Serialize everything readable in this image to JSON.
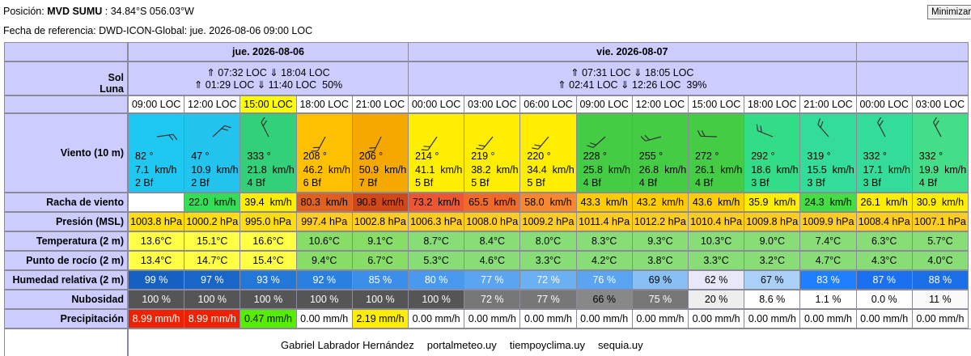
{
  "header": {
    "position_label": "Posición:",
    "station": "MVD SUMU",
    "coords": ": 34.84°S 056.03°W",
    "reference": "Fecha de referencia: DWD-ICON-Global: jue. 2026-08-06 09:00 LOC",
    "button": "Minimizar"
  },
  "row_labels": {
    "sun": "Sol",
    "moon": "Luna",
    "wind": "Viento (10 m)",
    "gust": "Racha de viento",
    "pressure": "Presión (MSL)",
    "temp": "Temperatura (2 m)",
    "dew": "Punto de rocío (2 m)",
    "humidity": "Humedad relativa (2 m)",
    "clouds": "Nubosidad",
    "precip": "Precipitación"
  },
  "days": [
    {
      "label": "jue. 2026-08-06",
      "sun": "⇑ 07:32 LOC ⇓ 18:04 LOC",
      "moon": "⇑ 01:29 LOC ⇓ 11:40 LOC  50%",
      "columns": [
        {
          "time": "09:00 LOC",
          "dir": "82 °",
          "speed": "7.1  km/h",
          "bf": "2 Bf",
          "pressure": "1003.8 hPa",
          "temp": "13.6°C",
          "dew": "13.4°C",
          "humidity": "99 %",
          "clouds": "100 %",
          "precip": "8.99 mm/h",
          "colors": {
            "time": "#ffffff",
            "wind": "#1ec8f0",
            "gust": "#ffffff",
            "pressure": "#ffdd11",
            "temp": "#ffff44",
            "dew": "#ffff44",
            "humidity": "#1560c0",
            "clouds": "#555555",
            "precip": "#ee2200"
          },
          "text_colors": {
            "humidity": "#ffffff",
            "clouds": "#ffffff",
            "precip": "#ffffff"
          }
        },
        {
          "time": "12:00 LOC",
          "dir": "47 °",
          "speed": "10.9  km/h",
          "bf": "2 Bf",
          "gust": "22.0  km/h",
          "pressure": "1000.2 hPa",
          "temp": "15.1°C",
          "dew": "14.7°C",
          "humidity": "97 %",
          "clouds": "100 %",
          "precip": "8.99 mm/h",
          "colors": {
            "time": "#ffffff",
            "wind": "#22c4ee",
            "gust": "#33dd55",
            "pressure": "#ffdd11",
            "temp": "#ffff44",
            "dew": "#ffff44",
            "humidity": "#1a66c8",
            "clouds": "#555555",
            "precip": "#ee2200"
          },
          "text_colors": {
            "humidity": "#ffffff",
            "clouds": "#ffffff",
            "precip": "#ffffff"
          }
        },
        {
          "time": "15:00 LOC",
          "dir": "333 °",
          "speed": "21.8  km/h",
          "bf": "4 Bf",
          "gust": "39.4  km/h",
          "pressure": "995.0 hPa",
          "temp": "16.6°C",
          "dew": "15.4°C",
          "humidity": "93 %",
          "clouds": "100 %",
          "precip": "0.47 mm/h",
          "colors": {
            "time": "#ffff00",
            "wind": "#33d07a",
            "gust": "#ffee00",
            "pressure": "#ffdd11",
            "temp": "#ffff44",
            "dew": "#ffff44",
            "humidity": "#2277d8",
            "clouds": "#555555",
            "precip": "#55ee00"
          },
          "text_colors": {
            "humidity": "#ffffff",
            "clouds": "#ffffff"
          }
        },
        {
          "time": "18:00 LOC",
          "dir": "208 °",
          "speed": "46.2  km/h",
          "bf": "6 Bf",
          "gust": "80.3  km/h",
          "pressure": "997.4 hPa",
          "temp": "10.6°C",
          "dew": "9.4°C",
          "humidity": "92 %",
          "clouds": "100 %",
          "precip": "0.00 mm/h",
          "colors": {
            "time": "#ffffff",
            "wind": "#ffc000",
            "gust": "#e06020",
            "pressure": "#ffcc22",
            "temp": "#88dd66",
            "dew": "#88dd66",
            "humidity": "#2a80e0",
            "clouds": "#555555",
            "precip": "#ffffff"
          },
          "text_colors": {
            "humidity": "#ffffff",
            "clouds": "#ffffff"
          }
        },
        {
          "time": "21:00 LOC",
          "dir": "206 °",
          "speed": "50.9  km/h",
          "bf": "7 Bf",
          "gust": "90.8  km/h",
          "pressure": "1002.8 hPa",
          "temp": "9.1°C",
          "dew": "6.7°C",
          "humidity": "85 %",
          "clouds": "100 %",
          "precip": "2.19 mm/h",
          "colors": {
            "time": "#ffffff",
            "wind": "#f5a800",
            "gust": "#d04818",
            "pressure": "#ffcc22",
            "temp": "#88dd66",
            "dew": "#88dd66",
            "humidity": "#3b8eea",
            "clouds": "#555555",
            "precip": "#ffee00"
          },
          "text_colors": {
            "humidity": "#ffffff",
            "clouds": "#ffffff"
          }
        }
      ]
    },
    {
      "label": "vie. 2026-08-07",
      "sun": "⇑ 07:31 LOC ⇓ 18:05 LOC",
      "moon": "⇑ 02:41 LOC ⇓ 12:26 LOC  39%",
      "columns": [
        {
          "time": "00:00 LOC",
          "dir": "214 °",
          "speed": "41.1  km/h",
          "bf": "5 Bf",
          "gust": "73.2  km/h",
          "pressure": "1006.3 hPa",
          "temp": "8.7°C",
          "dew": "5.3°C",
          "humidity": "80 %",
          "clouds": "100 %",
          "precip": "0.00 mm/h",
          "colors": {
            "time": "#ffffff",
            "wind": "#ffee00",
            "gust": "#ee5533",
            "pressure": "#ffcc22",
            "temp": "#88dd77",
            "dew": "#88dd77",
            "humidity": "#4a99f0",
            "clouds": "#555555",
            "precip": "#ffffff"
          },
          "text_colors": {
            "humidity": "#ffffff",
            "clouds": "#ffffff"
          }
        },
        {
          "time": "03:00 LOC",
          "dir": "219 °",
          "speed": "38.2  km/h",
          "bf": "5 Bf",
          "gust": "65.5  km/h",
          "pressure": "1008.0 hPa",
          "temp": "8.4°C",
          "dew": "4.6°C",
          "humidity": "77 %",
          "clouds": "72 %",
          "precip": "0.00 mm/h",
          "colors": {
            "time": "#ffffff",
            "wind": "#ffee00",
            "gust": "#f06a2a",
            "pressure": "#ffcc22",
            "temp": "#88dd77",
            "dew": "#88dd77",
            "humidity": "#5aa4f2",
            "clouds": "#777777",
            "precip": "#ffffff"
          },
          "text_colors": {
            "humidity": "#ffffff",
            "clouds": "#ffffff"
          }
        },
        {
          "time": "06:00 LOC",
          "dir": "220 °",
          "speed": "34.4  km/h",
          "bf": "5 Bf",
          "gust": "58.0  km/h",
          "pressure": "1009.2 hPa",
          "temp": "8.0°C",
          "dew": "3.3°C",
          "humidity": "72 %",
          "clouds": "77 %",
          "precip": "0.00 mm/h",
          "colors": {
            "time": "#ffffff",
            "wind": "#ffee00",
            "gust": "#f88830",
            "pressure": "#ffcc22",
            "temp": "#88dd77",
            "dew": "#88dd77",
            "humidity": "#6cb0f4",
            "clouds": "#777777",
            "precip": "#ffffff"
          },
          "text_colors": {
            "humidity": "#ffffff",
            "clouds": "#ffffff"
          }
        },
        {
          "time": "09:00 LOC",
          "dir": "228 °",
          "speed": "25.8  km/h",
          "bf": "4 Bf",
          "gust": "43.3  km/h",
          "pressure": "1011.4 hPa",
          "temp": "8.3°C",
          "dew": "4.2°C",
          "humidity": "76 %",
          "clouds": "66 %",
          "precip": "0.00 mm/h",
          "colors": {
            "time": "#ffffff",
            "wind": "#44cc44",
            "gust": "#ffcc00",
            "pressure": "#ffcc22",
            "temp": "#88dd77",
            "dew": "#88dd77",
            "humidity": "#5aa4f2",
            "clouds": "#888888",
            "precip": "#ffffff"
          },
          "text_colors": {
            "humidity": "#ffffff"
          }
        },
        {
          "time": "12:00 LOC",
          "dir": "255 °",
          "speed": "26.8  km/h",
          "bf": "4 Bf",
          "gust": "43.2  km/h",
          "pressure": "1012.2 hPa",
          "temp": "9.3°C",
          "dew": "3.8°C",
          "humidity": "69 %",
          "clouds": "75 %",
          "precip": "0.00 mm/h",
          "colors": {
            "time": "#ffffff",
            "wind": "#44cc44",
            "gust": "#ffcc00",
            "pressure": "#ffcc22",
            "temp": "#88dd77",
            "dew": "#88dd77",
            "humidity": "#88c0f6",
            "clouds": "#777777",
            "precip": "#ffffff"
          },
          "text_colors": {
            "clouds": "#ffffff"
          }
        },
        {
          "time": "15:00 LOC",
          "dir": "272 °",
          "speed": "26.1  km/h",
          "bf": "4 Bf",
          "gust": "43.6  km/h",
          "pressure": "1010.4 hPa",
          "temp": "10.3°C",
          "dew": "3.3°C",
          "humidity": "62 %",
          "clouds": "20 %",
          "precip": "0.00 mm/h",
          "colors": {
            "time": "#ffffff",
            "wind": "#44cc44",
            "gust": "#ffcc00",
            "pressure": "#ffcc22",
            "temp": "#88dd77",
            "dew": "#88dd77",
            "humidity": "#e8e8f8",
            "clouds": "#eeeeee",
            "precip": "#ffffff"
          }
        },
        {
          "time": "18:00 LOC",
          "dir": "292 °",
          "speed": "18.6  km/h",
          "bf": "3 Bf",
          "gust": "35.9  km/h",
          "pressure": "1009.8 hPa",
          "temp": "9.0°C",
          "dew": "3.2°C",
          "humidity": "67 %",
          "clouds": "8.6 %",
          "precip": "0.00 mm/h",
          "colors": {
            "time": "#ffffff",
            "wind": "#33dd88",
            "gust": "#ffee00",
            "pressure": "#ffcc22",
            "temp": "#88dd77",
            "dew": "#88dd77",
            "humidity": "#aad0f8",
            "clouds": "#ffffff",
            "precip": "#ffffff"
          }
        },
        {
          "time": "21:00 LOC",
          "dir": "319 °",
          "speed": "15.5  km/h",
          "bf": "3 Bf",
          "gust": "24.3  km/h",
          "pressure": "1009.9 hPa",
          "temp": "7.4°C",
          "dew": "4.7°C",
          "humidity": "83 %",
          "clouds": "1.1 %",
          "precip": "0.00 mm/h",
          "colors": {
            "time": "#ffffff",
            "wind": "#33dd99",
            "gust": "#44dd44",
            "pressure": "#ffcc22",
            "temp": "#88dd77",
            "dew": "#88dd77",
            "humidity": "#1f80ff",
            "clouds": "#ffffff",
            "precip": "#ffffff"
          },
          "text_colors": {
            "humidity": "#ffffff"
          }
        }
      ]
    },
    {
      "columns": [
        {
          "time": "00:00 LOC",
          "dir": "332 °",
          "speed": "17.1  km/h",
          "bf": "3 Bf",
          "gust": "26.1  km/h",
          "pressure": "1008.4 hPa",
          "temp": "6.3°C",
          "dew": "4.3°C",
          "humidity": "87 %",
          "clouds": "0.0 %",
          "precip": "0.00 mm/h",
          "colors": {
            "time": "#ffffff",
            "wind": "#33dd99",
            "gust": "#ffee00",
            "pressure": "#ffcc22",
            "temp": "#88dd77",
            "dew": "#88dd77",
            "humidity": "#1a70f0",
            "clouds": "#ffffff",
            "precip": "#ffffff"
          },
          "text_colors": {
            "humidity": "#ffffff"
          }
        },
        {
          "time": "03:00 LOC",
          "dir": "332 °",
          "speed": "19.9  km/h",
          "bf": "4 Bf",
          "gust": "30.9  km/h",
          "pressure": "1007.1 hPa",
          "temp": "5.7°C",
          "dew": "4.0°C",
          "humidity": "88 %",
          "clouds": "11 %",
          "precip": "0.00 mm/h",
          "colors": {
            "time": "#ffffff",
            "wind": "#44dd88",
            "gust": "#ffee00",
            "pressure": "#ffcc22",
            "temp": "#88dd77",
            "dew": "#88dd77",
            "humidity": "#1a6ee8",
            "clouds": "#fafafa",
            "precip": "#ffffff"
          },
          "text_colors": {
            "humidity": "#ffffff"
          }
        }
      ]
    }
  ],
  "footer": [
    "Gabriel Labrador Hernández",
    "portalmeteo.uy",
    "tiempoyclima.uy",
    "sequia.uy"
  ]
}
